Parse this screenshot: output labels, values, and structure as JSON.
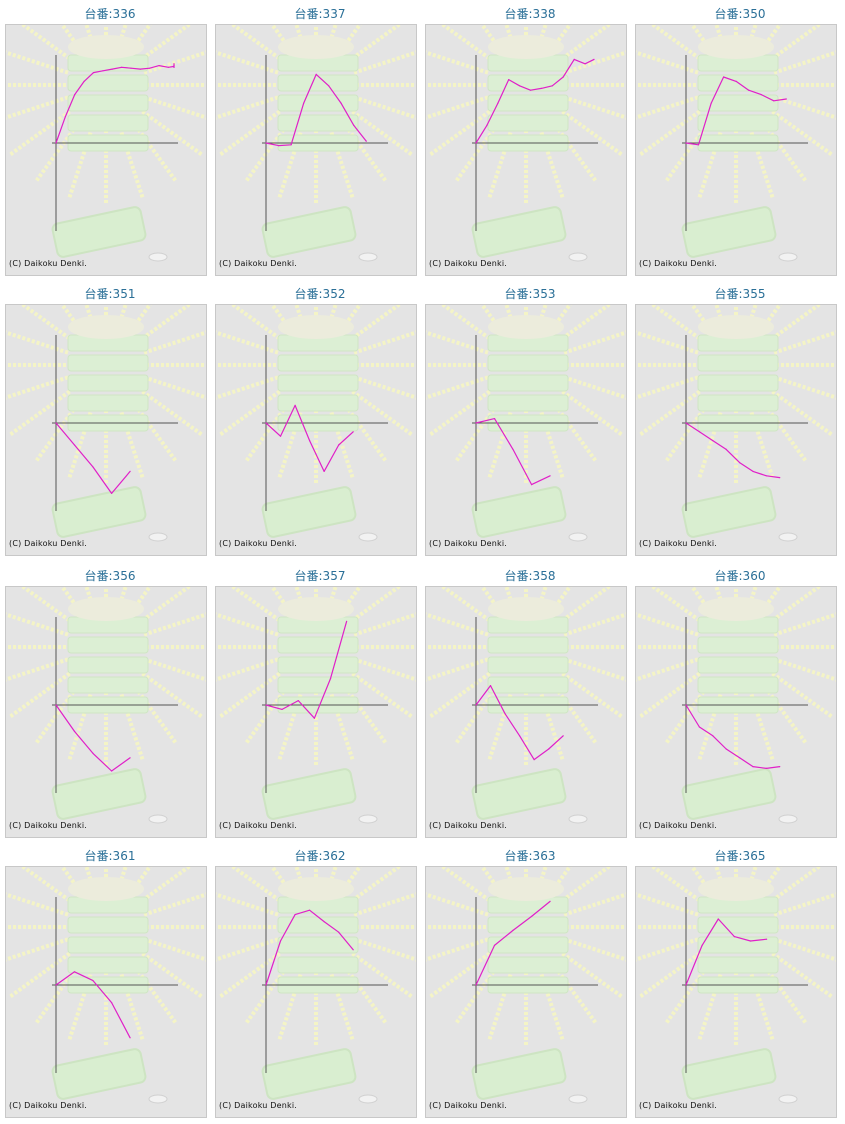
{
  "copyright": "(C) Daikoku Denki.",
  "line_color": "#e020c8",
  "axis_color": "#555555",
  "chart_data": [
    {
      "type": "line",
      "title": "台番:336",
      "values": [
        0,
        0.3,
        0.55,
        0.7,
        0.8,
        0.82,
        0.84,
        0.86,
        0.85,
        0.84,
        0.85,
        0.88,
        0.86,
        0.87,
        0.9,
        0.86,
        0.88,
        0.86
      ]
    },
    {
      "type": "line",
      "title": "台番:337",
      "values": [
        0,
        -0.03,
        -0.02,
        0.45,
        0.78,
        0.65,
        0.45,
        0.2,
        0.02
      ]
    },
    {
      "type": "line",
      "title": "台番:338",
      "values": [
        0,
        0.2,
        0.45,
        0.72,
        0.65,
        0.6,
        0.62,
        0.65,
        0.75,
        0.95,
        0.9,
        0.95
      ]
    },
    {
      "type": "line",
      "title": "台番:350",
      "values": [
        0,
        -0.02,
        0.45,
        0.75,
        0.7,
        0.6,
        0.55,
        0.48,
        0.5
      ]
    },
    {
      "type": "line",
      "title": "台番:351",
      "values": [
        0,
        -0.25,
        -0.5,
        -0.8,
        -0.55
      ]
    },
    {
      "type": "line",
      "title": "台番:352",
      "values": [
        0,
        -0.15,
        0.2,
        -0.2,
        -0.55,
        -0.25,
        -0.1
      ]
    },
    {
      "type": "line",
      "title": "台番:353",
      "values": [
        0,
        0.05,
        -0.3,
        -0.7,
        -0.6
      ]
    },
    {
      "type": "line",
      "title": "台番:355",
      "values": [
        0,
        -0.1,
        -0.2,
        -0.3,
        -0.45,
        -0.55,
        -0.6,
        -0.62
      ]
    },
    {
      "type": "line",
      "title": "台番:356",
      "values": [
        0,
        -0.3,
        -0.55,
        -0.75,
        -0.6
      ]
    },
    {
      "type": "line",
      "title": "台番:357",
      "values": [
        0,
        -0.05,
        0.05,
        -0.15,
        0.3,
        0.95
      ]
    },
    {
      "type": "line",
      "title": "台番:358",
      "values": [
        0,
        0.22,
        -0.1,
        -0.35,
        -0.62,
        -0.5,
        -0.35
      ]
    },
    {
      "type": "line",
      "title": "台番:360",
      "values": [
        0,
        -0.25,
        -0.35,
        -0.5,
        -0.6,
        -0.7,
        -0.72,
        -0.7
      ]
    },
    {
      "type": "line",
      "title": "台番:361",
      "values": [
        0,
        0.15,
        0.05,
        -0.2,
        -0.6
      ]
    },
    {
      "type": "line",
      "title": "台番:362",
      "values": [
        0,
        0.5,
        0.8,
        0.85,
        0.72,
        0.6,
        0.4
      ]
    },
    {
      "type": "line",
      "title": "台番:363",
      "values": [
        0,
        0.45,
        0.62,
        0.78,
        0.95
      ]
    },
    {
      "type": "line",
      "title": "台番:365",
      "values": [
        0,
        0.45,
        0.75,
        0.55,
        0.5,
        0.52
      ]
    }
  ]
}
